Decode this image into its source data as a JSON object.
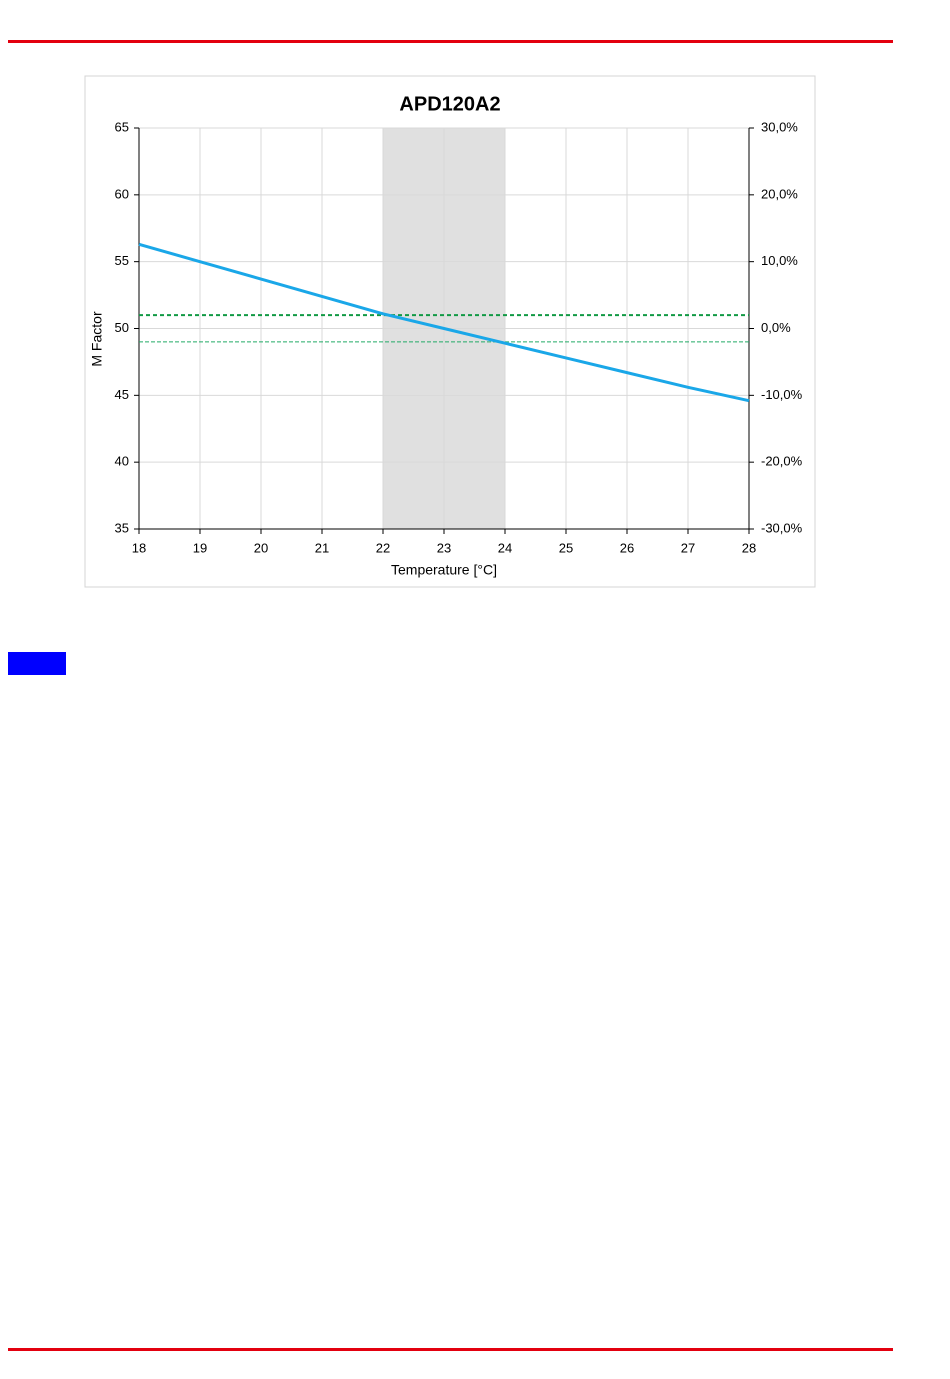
{
  "chart_data": {
    "type": "line",
    "title": "APD120A2",
    "x_label": "Temperature  [°C]",
    "y_label": "M Factor",
    "x": [
      18,
      19,
      20,
      21,
      22,
      23,
      24,
      25,
      26,
      27,
      28
    ],
    "values": [
      56.3,
      55.0,
      53.7,
      52.4,
      51.1,
      50.0,
      48.9,
      47.8,
      46.7,
      45.6,
      44.6
    ],
    "color": "#1aa7e8",
    "xlim": [
      18,
      28
    ],
    "xticks": [
      18,
      19,
      20,
      21,
      22,
      23,
      24,
      25,
      26,
      27,
      28
    ],
    "ylim": [
      35,
      65
    ],
    "yticks": [
      35,
      40,
      45,
      50,
      55,
      60,
      65
    ],
    "y2lim": [
      -30,
      30
    ],
    "y2ticks": [
      {
        "value": -30,
        "label": "-30,0%"
      },
      {
        "value": -20,
        "label": "-20,0%"
      },
      {
        "value": -10,
        "label": "-10,0%"
      },
      {
        "value": 0,
        "label": "0,0%"
      },
      {
        "value": 10,
        "label": "10,0%"
      },
      {
        "value": 20,
        "label": "20,0%"
      },
      {
        "value": 30,
        "label": "30,0%"
      }
    ],
    "reference_lines": [
      {
        "axis": "y2",
        "value": 2,
        "color": "#119944",
        "width": 2
      },
      {
        "axis": "y2",
        "value": -2,
        "color": "#22aa66",
        "width": 1
      }
    ],
    "shaded_x": [
      22,
      24
    ],
    "shade_color": "#e0e0e0",
    "grid": true
  }
}
